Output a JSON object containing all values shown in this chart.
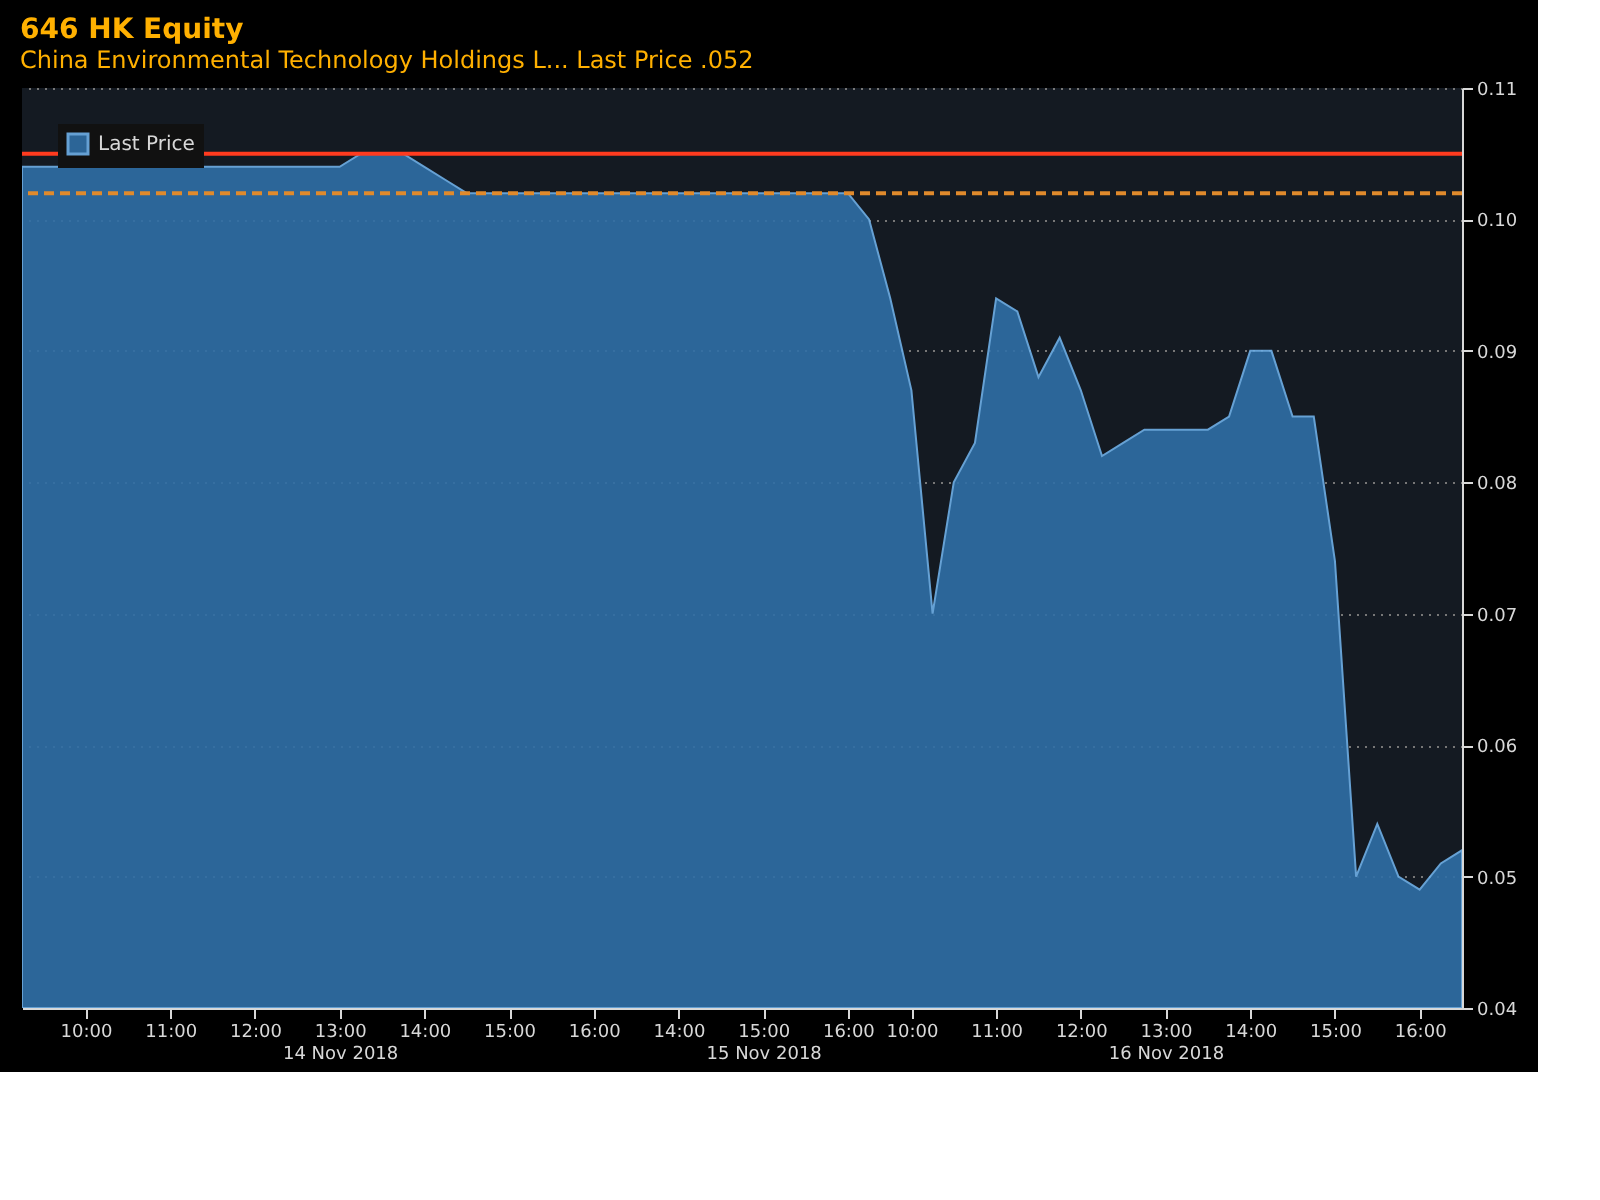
{
  "chart_data": {
    "type": "area",
    "title": "646 HK Equity",
    "subtitle": "China Environmental Technology Holdings L...   Last Price .052",
    "categories": [
      null,
      null,
      null,
      "10:00",
      null,
      null,
      null,
      "11:00",
      null,
      null,
      null,
      "12:00",
      null,
      null,
      null,
      "13:00\n14 Nov 2018",
      null,
      null,
      null,
      "14:00",
      null,
      null,
      null,
      "15:00",
      null,
      null,
      null,
      "16:00",
      null,
      null,
      null,
      "14:00",
      null,
      null,
      null,
      "15:00\n15 Nov 2018",
      null,
      null,
      null,
      "16:00",
      null,
      null,
      "10:00",
      null,
      null,
      null,
      "11:00",
      null,
      null,
      null,
      "12:00",
      null,
      null,
      null,
      "13:00\n16 Nov 2018",
      null,
      null,
      null,
      "14:00",
      null,
      null,
      null,
      "15:00",
      null,
      null,
      null,
      "16:00",
      null,
      null
    ],
    "series": [
      {
        "name": "Last Price",
        "color": "#2f6fa6",
        "values": [
          0.104,
          0.104,
          0.104,
          0.104,
          0.104,
          0.104,
          0.104,
          0.104,
          0.104,
          0.104,
          0.104,
          0.104,
          0.104,
          0.104,
          0.104,
          0.104,
          0.105,
          0.105,
          0.105,
          0.104,
          0.103,
          0.102,
          0.102,
          0.102,
          0.102,
          0.102,
          0.102,
          0.102,
          0.102,
          0.102,
          0.102,
          0.102,
          0.102,
          0.102,
          0.102,
          0.102,
          0.102,
          0.102,
          0.102,
          0.102,
          0.1,
          0.094,
          0.087,
          0.07,
          0.08,
          0.083,
          0.094,
          0.093,
          0.088,
          0.091,
          0.087,
          0.082,
          0.083,
          0.084,
          0.084,
          0.084,
          0.084,
          0.085,
          0.09,
          0.09,
          0.085,
          0.085,
          0.074,
          0.05,
          0.054,
          0.05,
          0.049,
          0.051,
          0.052
        ]
      }
    ],
    "ylim": [
      0.04,
      0.11
    ],
    "yticks": [
      0.04,
      0.05,
      0.06,
      0.07,
      0.08,
      0.09,
      {
        "value": 0.1,
        "label": "0.10"
      },
      0.11
    ],
    "ref_lines": [
      {
        "axis": "y",
        "value": 0.105,
        "color": "#ff3b1f",
        "line_style": "solid"
      },
      {
        "axis": "y",
        "value": 0.102,
        "color": "#e08a2c",
        "line_style": "dashed"
      }
    ],
    "grid": "y",
    "legend": "top left"
  }
}
